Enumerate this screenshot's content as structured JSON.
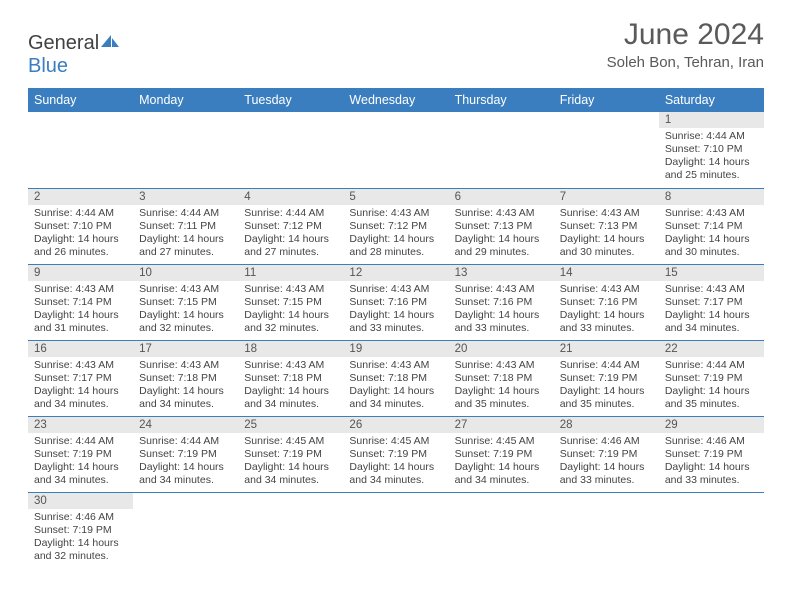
{
  "logo": {
    "text1": "General",
    "text2": "Blue"
  },
  "title": "June 2024",
  "subtitle": "Soleh Bon, Tehran, Iran",
  "colors": {
    "header_bg": "#3a7ebf",
    "header_fg": "#ffffff",
    "daynum_bg": "#e8e8e8",
    "row_divider": "#3a7ebf",
    "text": "#444444",
    "title": "#5a5a5a"
  },
  "font_sizes": {
    "title": 30,
    "subtitle": 15,
    "th": 12.5,
    "daynum": 11.5,
    "cell": 10.5
  },
  "day_labels": [
    "Sunday",
    "Monday",
    "Tuesday",
    "Wednesday",
    "Thursday",
    "Friday",
    "Saturday"
  ],
  "weeks": [
    [
      null,
      null,
      null,
      null,
      null,
      null,
      {
        "n": "1",
        "sr": "4:44 AM",
        "ss": "7:10 PM",
        "dl": "14 hours and 25 minutes."
      }
    ],
    [
      {
        "n": "2",
        "sr": "4:44 AM",
        "ss": "7:10 PM",
        "dl": "14 hours and 26 minutes."
      },
      {
        "n": "3",
        "sr": "4:44 AM",
        "ss": "7:11 PM",
        "dl": "14 hours and 27 minutes."
      },
      {
        "n": "4",
        "sr": "4:44 AM",
        "ss": "7:12 PM",
        "dl": "14 hours and 27 minutes."
      },
      {
        "n": "5",
        "sr": "4:43 AM",
        "ss": "7:12 PM",
        "dl": "14 hours and 28 minutes."
      },
      {
        "n": "6",
        "sr": "4:43 AM",
        "ss": "7:13 PM",
        "dl": "14 hours and 29 minutes."
      },
      {
        "n": "7",
        "sr": "4:43 AM",
        "ss": "7:13 PM",
        "dl": "14 hours and 30 minutes."
      },
      {
        "n": "8",
        "sr": "4:43 AM",
        "ss": "7:14 PM",
        "dl": "14 hours and 30 minutes."
      }
    ],
    [
      {
        "n": "9",
        "sr": "4:43 AM",
        "ss": "7:14 PM",
        "dl": "14 hours and 31 minutes."
      },
      {
        "n": "10",
        "sr": "4:43 AM",
        "ss": "7:15 PM",
        "dl": "14 hours and 32 minutes."
      },
      {
        "n": "11",
        "sr": "4:43 AM",
        "ss": "7:15 PM",
        "dl": "14 hours and 32 minutes."
      },
      {
        "n": "12",
        "sr": "4:43 AM",
        "ss": "7:16 PM",
        "dl": "14 hours and 33 minutes."
      },
      {
        "n": "13",
        "sr": "4:43 AM",
        "ss": "7:16 PM",
        "dl": "14 hours and 33 minutes."
      },
      {
        "n": "14",
        "sr": "4:43 AM",
        "ss": "7:16 PM",
        "dl": "14 hours and 33 minutes."
      },
      {
        "n": "15",
        "sr": "4:43 AM",
        "ss": "7:17 PM",
        "dl": "14 hours and 34 minutes."
      }
    ],
    [
      {
        "n": "16",
        "sr": "4:43 AM",
        "ss": "7:17 PM",
        "dl": "14 hours and 34 minutes."
      },
      {
        "n": "17",
        "sr": "4:43 AM",
        "ss": "7:18 PM",
        "dl": "14 hours and 34 minutes."
      },
      {
        "n": "18",
        "sr": "4:43 AM",
        "ss": "7:18 PM",
        "dl": "14 hours and 34 minutes."
      },
      {
        "n": "19",
        "sr": "4:43 AM",
        "ss": "7:18 PM",
        "dl": "14 hours and 34 minutes."
      },
      {
        "n": "20",
        "sr": "4:43 AM",
        "ss": "7:18 PM",
        "dl": "14 hours and 35 minutes."
      },
      {
        "n": "21",
        "sr": "4:44 AM",
        "ss": "7:19 PM",
        "dl": "14 hours and 35 minutes."
      },
      {
        "n": "22",
        "sr": "4:44 AM",
        "ss": "7:19 PM",
        "dl": "14 hours and 35 minutes."
      }
    ],
    [
      {
        "n": "23",
        "sr": "4:44 AM",
        "ss": "7:19 PM",
        "dl": "14 hours and 34 minutes."
      },
      {
        "n": "24",
        "sr": "4:44 AM",
        "ss": "7:19 PM",
        "dl": "14 hours and 34 minutes."
      },
      {
        "n": "25",
        "sr": "4:45 AM",
        "ss": "7:19 PM",
        "dl": "14 hours and 34 minutes."
      },
      {
        "n": "26",
        "sr": "4:45 AM",
        "ss": "7:19 PM",
        "dl": "14 hours and 34 minutes."
      },
      {
        "n": "27",
        "sr": "4:45 AM",
        "ss": "7:19 PM",
        "dl": "14 hours and 34 minutes."
      },
      {
        "n": "28",
        "sr": "4:46 AM",
        "ss": "7:19 PM",
        "dl": "14 hours and 33 minutes."
      },
      {
        "n": "29",
        "sr": "4:46 AM",
        "ss": "7:19 PM",
        "dl": "14 hours and 33 minutes."
      }
    ],
    [
      {
        "n": "30",
        "sr": "4:46 AM",
        "ss": "7:19 PM",
        "dl": "14 hours and 32 minutes."
      },
      null,
      null,
      null,
      null,
      null,
      null
    ]
  ],
  "labels": {
    "sunrise": "Sunrise:",
    "sunset": "Sunset:",
    "daylight": "Daylight:"
  }
}
